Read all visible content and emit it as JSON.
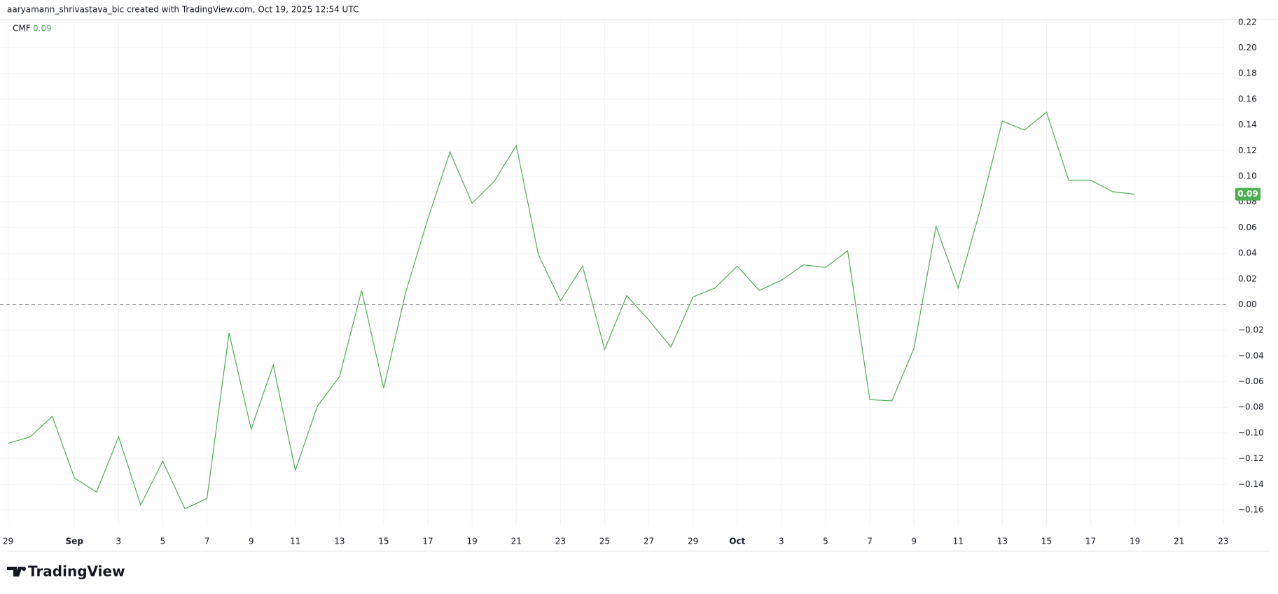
{
  "chart_data": {
    "type": "line",
    "attribution": "aaryamann_shrivastava_bic created with TradingView.com, Oct 19, 2025 12:54 UTC",
    "brand": "TradingView",
    "categories": [
      "29",
      null,
      null,
      "Sep",
      null,
      "3",
      null,
      "5",
      null,
      "7",
      null,
      "9",
      null,
      "11",
      null,
      "13",
      null,
      "15",
      null,
      "17",
      null,
      "19",
      null,
      "21",
      null,
      "23",
      null,
      "25",
      null,
      "27",
      null,
      "29",
      null,
      "Oct",
      null,
      "3",
      null,
      "5",
      null,
      "7",
      null,
      "9",
      null,
      "11",
      null,
      "13",
      null,
      "15",
      null,
      "17",
      null,
      "19",
      null,
      "21",
      null,
      "23"
    ],
    "series": [
      {
        "name": "CMF",
        "color": "#4caf50",
        "values": [
          -0.108,
          -0.103,
          -0.087,
          -0.135,
          -0.146,
          -0.103,
          -0.156,
          -0.122,
          -0.159,
          -0.151,
          -0.022,
          -0.097,
          -0.047,
          -0.129,
          -0.079,
          -0.056,
          0.011,
          -0.065,
          0.01,
          0.067,
          0.119,
          0.079,
          0.096,
          0.124,
          0.039,
          0.003,
          0.03,
          -0.035,
          0.007,
          -0.012,
          -0.033,
          0.006,
          0.013,
          0.03,
          0.011,
          0.019,
          0.031,
          0.029,
          0.042,
          -0.074,
          -0.075,
          -0.034,
          0.061,
          0.013,
          0.074,
          0.143,
          0.136,
          0.15,
          0.097,
          0.097,
          0.088,
          0.086,
          null,
          null,
          null,
          null
        ],
        "value_labels": [
          null,
          null,
          null,
          null,
          null,
          null,
          null,
          null,
          null,
          null,
          null,
          null,
          null,
          null,
          null,
          null,
          null,
          null,
          null,
          null,
          null,
          null,
          null,
          null,
          null,
          null,
          null,
          null,
          null,
          null,
          null,
          null,
          null,
          null,
          null,
          null,
          null,
          null,
          null,
          null,
          null,
          null,
          null,
          null,
          null,
          null,
          null,
          null,
          null,
          null,
          null,
          "0.09",
          null,
          null,
          null,
          null
        ]
      }
    ],
    "ylim": [
      -0.172,
      0.221
    ],
    "yticks": [
      {
        "value": -0.16,
        "label": "−0.16"
      },
      {
        "value": -0.14,
        "label": "−0.14"
      },
      {
        "value": -0.12,
        "label": "−0.12"
      },
      {
        "value": -0.1,
        "label": "−0.10"
      },
      {
        "value": -0.08,
        "label": "−0.08"
      },
      {
        "value": -0.06,
        "label": "−0.06"
      },
      {
        "value": -0.04,
        "label": "−0.04"
      },
      {
        "value": -0.02,
        "label": "−0.02"
      },
      {
        "value": 0,
        "label": "0.00"
      },
      0.02,
      0.04,
      0.06,
      {
        "value": 0.08,
        "label": "0.08"
      },
      {
        "value": 0.1,
        "label": "0.10"
      },
      0.12,
      0.14,
      0.16,
      0.18,
      {
        "value": 0.2,
        "label": "0.20"
      },
      0.22
    ],
    "grid": true,
    "zero_line": {
      "value": 0,
      "style": "dashed"
    }
  }
}
